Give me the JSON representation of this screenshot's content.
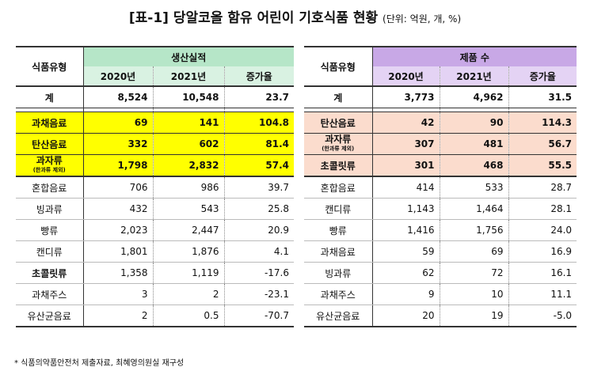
{
  "title": {
    "main": "[표-1] 당알코올 함유 어린이 기호식품 현황",
    "unit": "(단위: 억원, 개, %)"
  },
  "left": {
    "type_header": "식품유형",
    "group_header": "생산실적",
    "columns": [
      "2020년",
      "2021년",
      "증가율"
    ],
    "total": {
      "type": "계",
      "values": [
        "8,524",
        "10,548",
        "23.7"
      ]
    },
    "rows": [
      {
        "type": "과채음료",
        "values": [
          "69",
          "141",
          "104.8"
        ]
      },
      {
        "type": "탄산음료",
        "values": [
          "332",
          "602",
          "81.4"
        ]
      },
      {
        "type": "과자류",
        "type_sub": "(한과류 제외)",
        "values": [
          "1,798",
          "2,832",
          "57.4"
        ]
      },
      {
        "type": "혼합음료",
        "values": [
          "706",
          "986",
          "39.7"
        ]
      },
      {
        "type": "빙과류",
        "values": [
          "432",
          "543",
          "25.8"
        ]
      },
      {
        "type": "빵류",
        "values": [
          "2,023",
          "2,447",
          "20.9"
        ]
      },
      {
        "type": "캔디류",
        "values": [
          "1,801",
          "1,876",
          "4.1"
        ]
      },
      {
        "type": "초콜릿류",
        "values": [
          "1,358",
          "1,119",
          "-17.6"
        ]
      },
      {
        "type": "과채주스",
        "values": [
          "3",
          "2",
          "-23.1"
        ]
      },
      {
        "type": "유산균음료",
        "values": [
          "2",
          "0.5",
          "-70.7"
        ]
      }
    ]
  },
  "right": {
    "type_header": "식품유형",
    "group_header": "제품 수",
    "columns": [
      "2020년",
      "2021년",
      "증가율"
    ],
    "total": {
      "type": "계",
      "values": [
        "3,773",
        "4,962",
        "31.5"
      ]
    },
    "rows": [
      {
        "type": "탄산음료",
        "values": [
          "42",
          "90",
          "114.3"
        ]
      },
      {
        "type": "과자류",
        "type_sub": "(한과류 제외)",
        "values": [
          "307",
          "481",
          "56.7"
        ]
      },
      {
        "type": "초콜릿류",
        "values": [
          "301",
          "468",
          "55.5"
        ]
      },
      {
        "type": "혼합음료",
        "values": [
          "414",
          "533",
          "28.7"
        ]
      },
      {
        "type": "캔디류",
        "values": [
          "1,143",
          "1,464",
          "28.1"
        ]
      },
      {
        "type": "빵류",
        "values": [
          "1,416",
          "1,756",
          "24.0"
        ]
      },
      {
        "type": "과채음료",
        "values": [
          "59",
          "69",
          "16.9"
        ]
      },
      {
        "type": "빙과류",
        "values": [
          "62",
          "72",
          "16.1"
        ]
      },
      {
        "type": "과채주스",
        "values": [
          "9",
          "10",
          "11.1"
        ]
      },
      {
        "type": "유산균음료",
        "values": [
          "20",
          "19",
          "-5.0"
        ]
      }
    ]
  },
  "footnote": "* 식품의약품안전처 제출자료, 최혜영의원실 재구성",
  "colors": {
    "left_header": "#b6e6c8",
    "left_subheader": "#d9f2e2",
    "right_header": "#c8a8e6",
    "right_subheader": "#e4d3f4",
    "left_highlight": "#ffff00",
    "right_highlight": "#fbdccd"
  }
}
